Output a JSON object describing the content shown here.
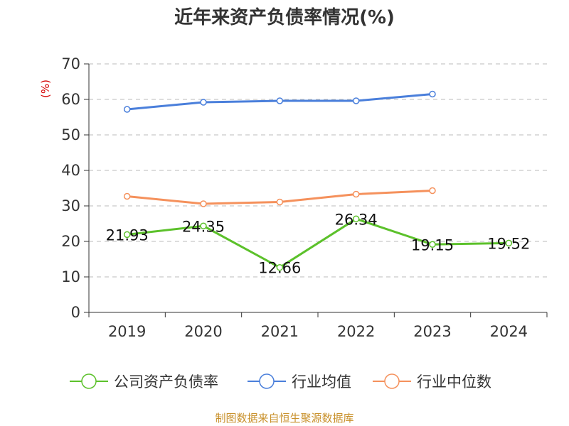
{
  "chart_data": {
    "type": "line",
    "title": "近年来资产负债率情况(%)",
    "unit_label": "(%)",
    "categories": [
      "2019",
      "2020",
      "2021",
      "2022",
      "2023",
      "2024"
    ],
    "ylim": [
      0,
      70
    ],
    "yticks": [
      0,
      10,
      20,
      30,
      40,
      50,
      60,
      70
    ],
    "grid": true,
    "legend_position": "bottom",
    "series": [
      {
        "name": "公司资产负债率",
        "color": "#5cc12b",
        "show_labels": true,
        "values": [
          21.93,
          24.35,
          12.66,
          26.34,
          19.15,
          19.52
        ]
      },
      {
        "name": "行业均值",
        "color": "#4a7fdb",
        "show_labels": false,
        "values": [
          57.2,
          59.2,
          59.6,
          59.6,
          61.5,
          null
        ]
      },
      {
        "name": "行业中位数",
        "color": "#f5915c",
        "show_labels": false,
        "values": [
          32.7,
          30.6,
          31.1,
          33.3,
          34.3,
          null
        ]
      }
    ],
    "source": "制图数据来自恒生聚源数据库"
  }
}
